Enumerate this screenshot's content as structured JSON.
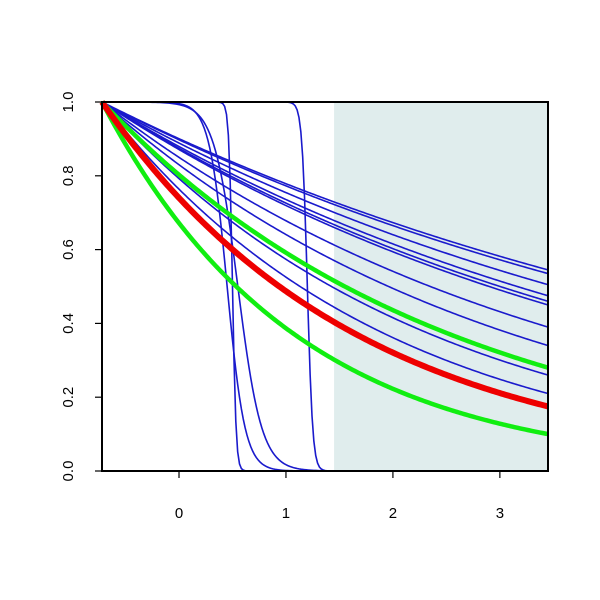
{
  "chart_data": {
    "type": "line",
    "title": "",
    "xlabel": "",
    "ylabel": "",
    "xlim": [
      -0.72,
      3.45
    ],
    "ylim": [
      0.0,
      1.0
    ],
    "x_ticks": [
      0,
      1,
      2,
      3
    ],
    "x_tick_labels": [
      "0",
      "1",
      "2",
      "3"
    ],
    "y_ticks": [
      0.0,
      0.2,
      0.4,
      0.6,
      0.8,
      1.0
    ],
    "y_tick_labels": [
      "0.0",
      "0.2",
      "0.4",
      "0.6",
      "0.8",
      "1.0"
    ],
    "grid": false,
    "legend": "none",
    "shaded_region": {
      "x_from": 1.45,
      "x_to": 3.45,
      "color": "#e0eded"
    },
    "colors": {
      "blue": "#1a1acc",
      "red": "#ee0000",
      "green": "#11ee11"
    },
    "blue_survival_lines": [
      {
        "end_y": 0.545
      },
      {
        "end_y": 0.535
      },
      {
        "end_y": 0.505
      },
      {
        "end_y": 0.475
      },
      {
        "end_y": 0.46
      },
      {
        "end_y": 0.45
      },
      {
        "end_y": 0.39
      },
      {
        "end_y": 0.34
      },
      {
        "end_y": 0.26
      },
      {
        "end_y": 0.21
      }
    ],
    "blue_step_curves": [
      {
        "mid_x": 0.5,
        "steepness": 60
      },
      {
        "mid_x": 1.2,
        "steepness": 40
      },
      {
        "mid_x": 0.45,
        "steepness": 12
      },
      {
        "mid_x": 0.55,
        "steepness": 9
      }
    ],
    "red_curve": {
      "end_y": 0.175
    },
    "green_curves": [
      {
        "end_y": 0.28
      },
      {
        "end_y": 0.1
      }
    ]
  }
}
